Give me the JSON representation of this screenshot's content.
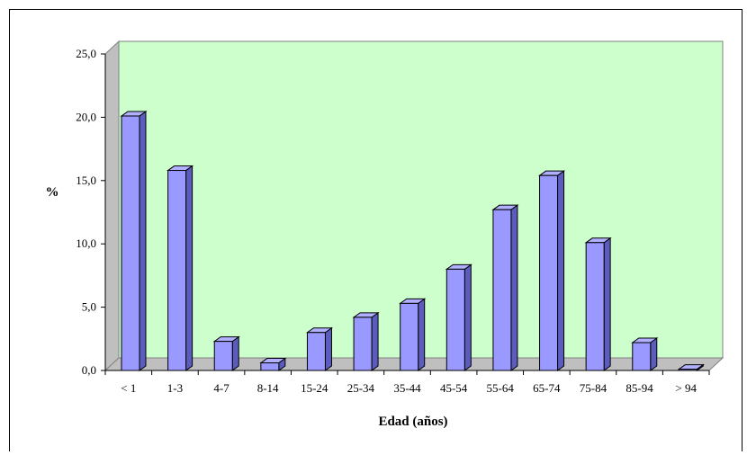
{
  "chart_data": {
    "type": "bar",
    "categories": [
      "< 1",
      "1-3",
      "4-7",
      "8-14",
      "15-24",
      "25-34",
      "35-44",
      "45-54",
      "55-64",
      "65-74",
      "75-84",
      "85-94",
      "> 94"
    ],
    "values": [
      20.1,
      15.8,
      2.3,
      0.6,
      3.0,
      4.2,
      5.3,
      8.0,
      12.7,
      15.4,
      10.1,
      2.2,
      0.1
    ],
    "xlabel": "Edad (años)",
    "ylabel": "%",
    "ylim": [
      0,
      25
    ],
    "yticks": [
      "0,0",
      "5,0",
      "10,0",
      "15,0",
      "20,0",
      "25,0"
    ],
    "grid": false,
    "colors": {
      "wall": "#ccffcc",
      "floor": "#bfbfbf",
      "bar_front": "#9999ff",
      "bar_top": "#b0b0ff",
      "bar_side": "#5c5cbf"
    }
  }
}
